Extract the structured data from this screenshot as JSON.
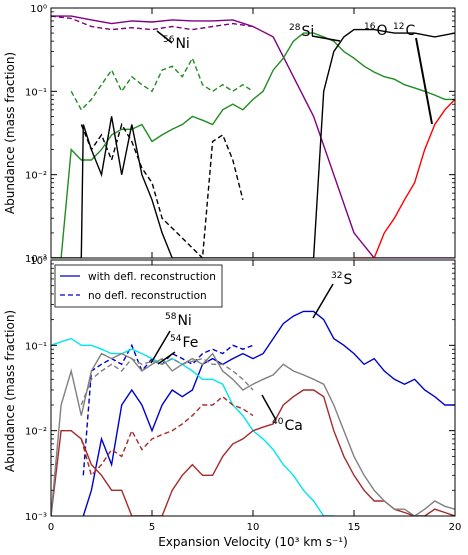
{
  "figure": {
    "xlabel": "Expansion Velocity (10³ km s⁻¹)",
    "x_ticks": [
      "0",
      "5",
      "10",
      "15",
      "20"
    ],
    "y_ticks": [
      "10⁻³",
      "10⁻²",
      "10⁻¹",
      "10⁰"
    ]
  },
  "chart_data": [
    {
      "type": "line",
      "panel": "top",
      "ylabel": "Abundance (mass fraction)",
      "xlim": [
        0,
        20
      ],
      "ylim": [
        0.001,
        1
      ],
      "yscale": "log",
      "series": [
        {
          "element": "Ni56",
          "color": "#800080",
          "style": "solid",
          "x": [
            0,
            1,
            2,
            3,
            4,
            5,
            6,
            7,
            8,
            9,
            10,
            11,
            12,
            13,
            14,
            15,
            16,
            17,
            18,
            19,
            20
          ],
          "y": [
            0.8,
            0.8,
            0.72,
            0.65,
            0.7,
            0.68,
            0.72,
            0.7,
            0.7,
            0.72,
            0.6,
            0.45,
            0.15,
            0.05,
            0.01,
            0.002,
            0.001,
            0.001,
            0.001,
            0.001,
            0.001
          ]
        },
        {
          "element": "Ni56",
          "color": "#800080",
          "style": "dashed",
          "x": [
            0,
            1,
            2,
            3,
            4,
            5,
            6,
            7,
            8,
            9,
            10
          ],
          "y": [
            0.8,
            0.75,
            0.6,
            0.55,
            0.58,
            0.55,
            0.6,
            0.55,
            0.6,
            0.65,
            0.6
          ]
        },
        {
          "element": "Si28",
          "color": "#228b22",
          "style": "solid",
          "x": [
            0,
            0.5,
            1,
            1.5,
            2,
            2.5,
            3,
            3.5,
            4,
            4.5,
            5,
            5.5,
            6,
            6.5,
            7,
            7.5,
            8,
            8.5,
            9,
            9.5,
            10,
            10.5,
            11,
            11.5,
            12,
            12.5,
            13,
            13.5,
            14,
            14.5,
            15,
            15.5,
            16,
            16.5,
            17,
            17.5,
            18,
            18.5,
            19,
            19.5,
            20
          ],
          "y": [
            0.001,
            0.001,
            0.02,
            0.015,
            0.015,
            0.02,
            0.03,
            0.035,
            0.035,
            0.04,
            0.025,
            0.03,
            0.035,
            0.04,
            0.05,
            0.045,
            0.04,
            0.06,
            0.07,
            0.06,
            0.08,
            0.1,
            0.18,
            0.25,
            0.4,
            0.5,
            0.5,
            0.45,
            0.4,
            0.3,
            0.25,
            0.2,
            0.17,
            0.15,
            0.14,
            0.12,
            0.11,
            0.1,
            0.09,
            0.08,
            0.08
          ]
        },
        {
          "element": "Si28",
          "color": "#228b22",
          "style": "dashed",
          "x": [
            1,
            1.5,
            2,
            2.5,
            3,
            3.5,
            4,
            4.5,
            5,
            5.5,
            6,
            6.5,
            7,
            7.5,
            8,
            8.5,
            9,
            9.5,
            10
          ],
          "y": [
            0.1,
            0.06,
            0.08,
            0.12,
            0.18,
            0.1,
            0.15,
            0.12,
            0.1,
            0.18,
            0.2,
            0.15,
            0.25,
            0.12,
            0.1,
            0.12,
            0.1,
            0.12,
            0.1
          ]
        },
        {
          "element": "O16",
          "color": "#000000",
          "style": "solid",
          "x": [
            0,
            1.5,
            1.6,
            2,
            2.5,
            3,
            3.5,
            4,
            4.5,
            5,
            5.5,
            6,
            6.5,
            7,
            7.5,
            8,
            9,
            10,
            11,
            12,
            12.5,
            13,
            13.5,
            14,
            14.5,
            15,
            16,
            17,
            18,
            19,
            20
          ],
          "y": [
            0.001,
            0.001,
            0.04,
            0.02,
            0.01,
            0.05,
            0.01,
            0.04,
            0.01,
            0.005,
            0.002,
            0.001,
            0.001,
            0.001,
            0.001,
            0.001,
            0.001,
            0.001,
            0.001,
            0.001,
            0.001,
            0.001,
            0.1,
            0.3,
            0.45,
            0.55,
            0.55,
            0.5,
            0.5,
            0.45,
            0.5
          ]
        },
        {
          "element": "O16",
          "color": "#000000",
          "style": "dashed",
          "x": [
            1.5,
            2,
            2.5,
            3,
            3.5,
            4,
            4.5,
            5,
            5.5,
            7.5,
            8,
            8.5,
            9,
            9.5
          ],
          "y": [
            0.04,
            0.02,
            0.03,
            0.015,
            0.04,
            0.025,
            0.012,
            0.008,
            0.003,
            0.001,
            0.025,
            0.03,
            0.015,
            0.005
          ]
        },
        {
          "element": "C12",
          "color": "#ff0000",
          "style": "solid",
          "x": [
            15,
            15.5,
            16,
            16.5,
            17,
            17.5,
            18,
            18.5,
            19,
            19.5,
            20
          ],
          "y": [
            0.001,
            0.001,
            0.001,
            0.002,
            0.003,
            0.005,
            0.008,
            0.02,
            0.04,
            0.06,
            0.08
          ]
        }
      ]
    },
    {
      "type": "line",
      "panel": "bottom",
      "ylabel": "Abundance (mass fraction)",
      "xlim": [
        0,
        20
      ],
      "ylim": [
        0.001,
        1
      ],
      "yscale": "log",
      "legend": {
        "location": "top-left",
        "entries": [
          "with defl. reconstruction",
          "no defl. reconstruction"
        ]
      },
      "series": [
        {
          "element": "S32",
          "color": "#0000cd",
          "style": "solid",
          "x": [
            1.6,
            2,
            2.5,
            3,
            3.5,
            4,
            4.5,
            5,
            5.5,
            6,
            6.5,
            7,
            7.5,
            8,
            8.5,
            9,
            9.5,
            10,
            10.5,
            11,
            11.5,
            12,
            12.5,
            13,
            13.5,
            14,
            14.5,
            15,
            15.5,
            16,
            16.5,
            17,
            17.5,
            18,
            18.5,
            19,
            19.5,
            20
          ],
          "y": [
            0.001,
            0.002,
            0.008,
            0.004,
            0.02,
            0.03,
            0.02,
            0.01,
            0.02,
            0.03,
            0.025,
            0.03,
            0.06,
            0.07,
            0.06,
            0.07,
            0.08,
            0.07,
            0.08,
            0.12,
            0.18,
            0.22,
            0.25,
            0.25,
            0.2,
            0.12,
            0.1,
            0.08,
            0.06,
            0.07,
            0.05,
            0.04,
            0.035,
            0.04,
            0.03,
            0.025,
            0.02,
            0.02
          ]
        },
        {
          "element": "S32",
          "color": "#0000cd",
          "style": "dashed",
          "x": [
            1.6,
            2,
            2.5,
            3,
            3.5,
            4,
            4.5,
            5,
            5.5,
            6,
            6.5,
            7,
            7.5,
            8,
            8.5,
            9,
            9.5,
            10
          ],
          "y": [
            0.003,
            0.05,
            0.06,
            0.07,
            0.06,
            0.1,
            0.05,
            0.07,
            0.06,
            0.08,
            0.07,
            0.06,
            0.08,
            0.09,
            0.08,
            0.1,
            0.09,
            0.1
          ]
        },
        {
          "element": "Ni58",
          "color": "#00e5ee",
          "style": "solid",
          "x": [
            0,
            0.5,
            1,
            1.5,
            2,
            2.5,
            3,
            3.5,
            4,
            4.5,
            5,
            5.5,
            6,
            6.5,
            7,
            7.5,
            8,
            8.5,
            9,
            9.5,
            10,
            10.5,
            11,
            11.5,
            12,
            12.5,
            13,
            13.5,
            14
          ],
          "y": [
            0.1,
            0.11,
            0.12,
            0.1,
            0.1,
            0.09,
            0.08,
            0.08,
            0.09,
            0.08,
            0.07,
            0.06,
            0.07,
            0.06,
            0.05,
            0.04,
            0.04,
            0.035,
            0.02,
            0.015,
            0.01,
            0.008,
            0.006,
            0.004,
            0.003,
            0.002,
            0.0015,
            0.001,
            0.001
          ]
        },
        {
          "element": "Ca40",
          "color": "#a52a2a",
          "style": "solid",
          "x": [
            0,
            0.5,
            1,
            1.5,
            2,
            2.5,
            3,
            3.5,
            4,
            4.5,
            5,
            5.5,
            6,
            6.5,
            7,
            7.5,
            8,
            8.5,
            9,
            9.5,
            10,
            10.5,
            11,
            11.5,
            12,
            12.5,
            13,
            13.5,
            14,
            14.5,
            15,
            15.5,
            16,
            16.5,
            17,
            17.5,
            18,
            18.5,
            19,
            19.5,
            20
          ],
          "y": [
            0.001,
            0.01,
            0.01,
            0.008,
            0.004,
            0.003,
            0.002,
            0.002,
            0.001,
            0.001,
            0.001,
            0.001,
            0.002,
            0.003,
            0.004,
            0.003,
            0.003,
            0.005,
            0.007,
            0.008,
            0.01,
            0.011,
            0.012,
            0.02,
            0.025,
            0.03,
            0.03,
            0.025,
            0.01,
            0.005,
            0.003,
            0.002,
            0.0015,
            0.0015,
            0.0012,
            0.0011,
            0.001,
            0.001,
            0.0012,
            0.0011,
            0.001
          ]
        },
        {
          "element": "Ca40",
          "color": "#a52a2a",
          "style": "dashed",
          "x": [
            1.5,
            2,
            2.5,
            3,
            3.5,
            4,
            4.5,
            5,
            5.5,
            6,
            6.5,
            7,
            7.5,
            8,
            8.5,
            9,
            9.5,
            10
          ],
          "y": [
            0.008,
            0.003,
            0.004,
            0.006,
            0.005,
            0.01,
            0.006,
            0.008,
            0.009,
            0.01,
            0.012,
            0.015,
            0.02,
            0.02,
            0.025,
            0.02,
            0.018,
            0.015
          ]
        },
        {
          "element": "Fe54",
          "color": "#808080",
          "style": "solid",
          "x": [
            0,
            0.5,
            1,
            1.5,
            2,
            2.5,
            3,
            3.5,
            4,
            4.5,
            5,
            5.5,
            6,
            6.5,
            7,
            7.5,
            8,
            8.5,
            9,
            9.5,
            10,
            10.5,
            11,
            11.5,
            12,
            12.5,
            13,
            13.5,
            14,
            14.5,
            15,
            15.5,
            16,
            16.5,
            17,
            17.5,
            18,
            18.5,
            19,
            19.5,
            20
          ],
          "y": [
            0.001,
            0.02,
            0.05,
            0.015,
            0.05,
            0.08,
            0.07,
            0.08,
            0.07,
            0.05,
            0.06,
            0.07,
            0.05,
            0.06,
            0.07,
            0.06,
            0.08,
            0.05,
            0.04,
            0.03,
            0.035,
            0.04,
            0.045,
            0.06,
            0.05,
            0.045,
            0.04,
            0.035,
            0.02,
            0.01,
            0.005,
            0.003,
            0.002,
            0.0015,
            0.0012,
            0.0012,
            0.001,
            0.0012,
            0.0015,
            0.0013,
            0.0012
          ]
        },
        {
          "element": "Fe54",
          "color": "#808080",
          "style": "dashed",
          "x": [
            1.5,
            2,
            2.5,
            3,
            3.5,
            4,
            4.5,
            5,
            5.5,
            6,
            6.5,
            7,
            7.5,
            8,
            8.5,
            9,
            9.5,
            10
          ],
          "y": [
            0.02,
            0.04,
            0.05,
            0.06,
            0.05,
            0.07,
            0.06,
            0.065,
            0.06,
            0.07,
            0.06,
            0.065,
            0.07,
            0.06,
            0.06,
            0.05,
            0.04,
            0.03
          ]
        }
      ]
    }
  ],
  "labels": {
    "ni56": {
      "sup": "56",
      "sym": "Ni"
    },
    "si28": {
      "sup": "28",
      "sym": "Si"
    },
    "o16": {
      "sup": "16",
      "sym": "O"
    },
    "c12": {
      "sup": "12",
      "sym": "C"
    },
    "s32": {
      "sup": "32",
      "sym": "S"
    },
    "ni58": {
      "sup": "58",
      "sym": "Ni"
    },
    "fe54": {
      "sup": "54",
      "sym": "Fe"
    },
    "ca40": {
      "sup": "40",
      "sym": "Ca"
    }
  }
}
